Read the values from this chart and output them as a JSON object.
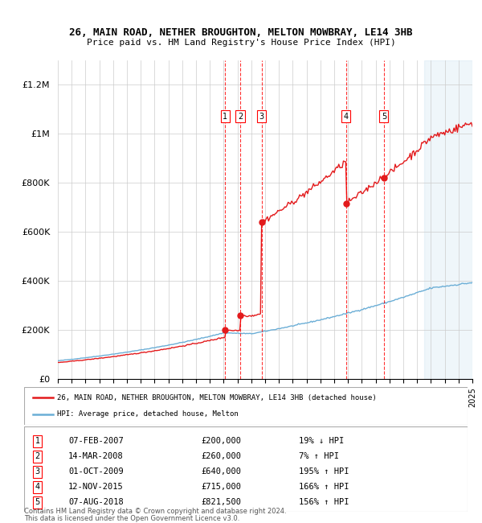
{
  "title": "26, MAIN ROAD, NETHER BROUGHTON, MELTON MOWBRAY, LE14 3HB",
  "subtitle": "Price paid vs. HM Land Registry's House Price Index (HPI)",
  "ylim": [
    0,
    1300000
  ],
  "yticks": [
    0,
    200000,
    400000,
    600000,
    800000,
    1000000,
    1200000
  ],
  "ytick_labels": [
    "£0",
    "£200K",
    "£400K",
    "£600K",
    "£800K",
    "£1M",
    "£1.2M"
  ],
  "hpi_color": "#6baed6",
  "price_color": "#e31a1c",
  "transactions": [
    {
      "label": "1",
      "date_str": "07-FEB-2007",
      "year": 2007.1,
      "price": 200000,
      "pct": "19% ↓ HPI"
    },
    {
      "label": "2",
      "date_str": "14-MAR-2008",
      "year": 2008.2,
      "price": 260000,
      "pct": "7% ↑ HPI"
    },
    {
      "label": "3",
      "date_str": "01-OCT-2009",
      "year": 2009.75,
      "price": 640000,
      "pct": "195% ↑ HPI"
    },
    {
      "label": "4",
      "date_str": "12-NOV-2015",
      "year": 2015.87,
      "price": 715000,
      "pct": "166% ↑ HPI"
    },
    {
      "label": "5",
      "date_str": "07-AUG-2018",
      "year": 2018.6,
      "price": 821500,
      "pct": "156% ↑ HPI"
    }
  ],
  "legend_line1": "26, MAIN ROAD, NETHER BROUGHTON, MELTON MOWBRAY, LE14 3HB (detached house)",
  "legend_line2": "HPI: Average price, detached house, Melton",
  "footnote1": "Contains HM Land Registry data © Crown copyright and database right 2024.",
  "footnote2": "This data is licensed under the Open Government Licence v3.0.",
  "xmin": 1995,
  "xmax": 2025
}
